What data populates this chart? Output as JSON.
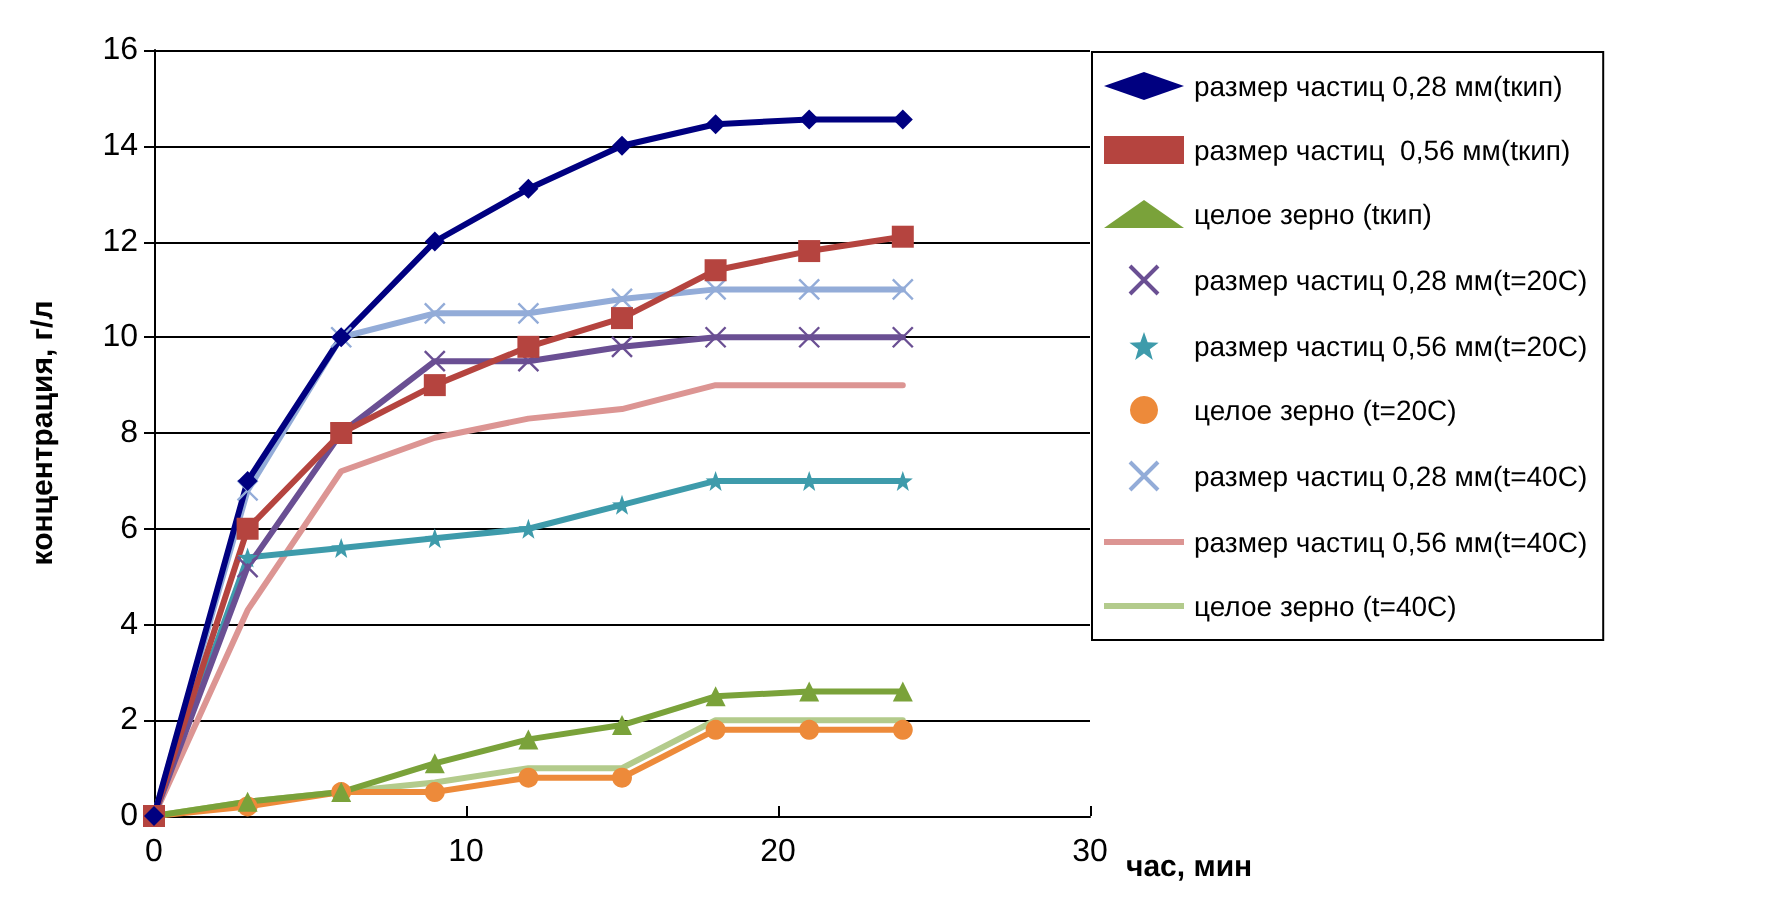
{
  "chart_data": {
    "type": "line",
    "xlabel": "час, мин",
    "ylabel": "концентрация, г/л",
    "x": [
      0,
      3,
      6,
      9,
      12,
      15,
      18,
      21,
      24
    ],
    "xlim": [
      0,
      30
    ],
    "xticks": [
      0,
      10,
      20,
      30
    ],
    "ylim": [
      0,
      16
    ],
    "yticks": [
      0,
      2,
      4,
      6,
      8,
      10,
      12,
      14,
      16
    ],
    "grid": "y",
    "legend": "right",
    "series": [
      {
        "name": "размер частиц 0,28 мм(tкип)",
        "color": "#000080",
        "marker": "diamond",
        "values": [
          0,
          7,
          10,
          12,
          13.1,
          14,
          14.45,
          14.55,
          14.55
        ]
      },
      {
        "name": "размер частиц  0,56 мм(tкип)",
        "color": "#b5443f",
        "marker": "square",
        "values": [
          0,
          6,
          8,
          9,
          9.8,
          10.4,
          11.4,
          11.8,
          12.1
        ]
      },
      {
        "name": "целое зерно (tкип)",
        "color": "#7aa23a",
        "marker": "triangle",
        "values": [
          0,
          0.3,
          0.5,
          1.1,
          1.6,
          1.9,
          2.5,
          2.6,
          2.6
        ]
      },
      {
        "name": "размер частиц 0,28 мм(t=20С)",
        "color": "#6a4f93",
        "marker": "cross",
        "values": [
          0,
          5.2,
          8,
          9.5,
          9.5,
          9.8,
          10,
          10,
          10
        ]
      },
      {
        "name": "размер частиц 0,56 мм(t=20С)",
        "color": "#3e9bab",
        "marker": "star",
        "values": [
          0,
          5.4,
          5.6,
          5.8,
          6,
          6.5,
          7,
          7,
          7
        ]
      },
      {
        "name": "целое зерно (t=20С)",
        "color": "#ed8a3a",
        "marker": "circle",
        "values": [
          0,
          0.2,
          0.5,
          0.5,
          0.8,
          0.8,
          1.8,
          1.8,
          1.8
        ]
      },
      {
        "name": "размер частиц 0,28 мм(t=40С)",
        "color": "#93acd8",
        "marker": "cross",
        "values": [
          0,
          6.8,
          10,
          10.5,
          10.5,
          10.8,
          11,
          11,
          11
        ]
      },
      {
        "name": "размер частиц 0,56 мм(t=40С)",
        "color": "#dc9593",
        "marker": "none",
        "values": [
          0,
          4.3,
          7.2,
          7.9,
          8.3,
          8.5,
          9,
          9,
          9
        ]
      },
      {
        "name": "целое зерно (t=40С)",
        "color": "#b3cb8c",
        "marker": "none",
        "values": [
          0,
          0.3,
          0.5,
          0.7,
          1,
          1,
          2,
          2,
          2
        ]
      }
    ]
  }
}
